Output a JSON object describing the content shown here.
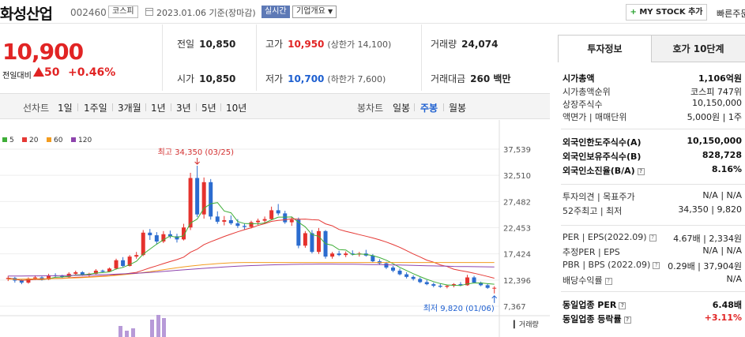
{
  "header": {
    "company": "화성산업",
    "code": "002460",
    "market": "코스피",
    "date": "2023.01.06  기준(장마감)",
    "realtime": "실시간",
    "overview": "기업개요",
    "mystock": "MY STOCK 추가",
    "quick": "빠른주문"
  },
  "price": {
    "current": "10,900",
    "change_label": "전일대비",
    "change": "50",
    "rate": "+0.46%"
  },
  "stats": {
    "prev_label": "전일",
    "prev": "10,850",
    "high_label": "고가",
    "high": "10,950",
    "high_limit": "(상한가 14,100)",
    "vol_label": "거래량",
    "vol": "24,074",
    "open_label": "시가",
    "open": "10,850",
    "low_label": "저가",
    "low": "10,700",
    "low_limit": "(하한가 7,600)",
    "amt_label": "거래대금",
    "amt": "260 백만"
  },
  "tabs": {
    "line_label": "선차트",
    "line": [
      "1일",
      "1주일",
      "3개월",
      "1년",
      "3년",
      "5년",
      "10년"
    ],
    "candle_label": "봉차트",
    "candle": [
      "일봉",
      "주봉",
      "월봉"
    ],
    "active": "주봉"
  },
  "chart_data": {
    "type": "candlestick",
    "legend": [
      {
        "name": "5",
        "color": "#3fae38"
      },
      {
        "name": "20",
        "color": "#e53935"
      },
      {
        "name": "60",
        "color": "#f39c1f"
      },
      {
        "name": "120",
        "color": "#8e44ad"
      }
    ],
    "y_ticks": [
      "37,539",
      "32,510",
      "27,482",
      "22,453",
      "17,424",
      "12,396",
      "7,367"
    ],
    "ylim": [
      7367,
      37539
    ],
    "max_label": "최고 34,350 (03/25)",
    "min_label": "최저 9,820 (01/06)",
    "volume_label": "거래량",
    "candles": [
      [
        12600,
        13200,
        12200,
        12800
      ],
      [
        12800,
        13000,
        11900,
        12300
      ],
      [
        12300,
        12500,
        11600,
        11900
      ],
      [
        11900,
        12900,
        11700,
        12700
      ],
      [
        12700,
        13300,
        12400,
        12900
      ],
      [
        12900,
        13100,
        12300,
        12500
      ],
      [
        12500,
        13600,
        12400,
        13300
      ],
      [
        13300,
        13700,
        12900,
        13200
      ],
      [
        13200,
        13400,
        12800,
        13000
      ],
      [
        13000,
        13900,
        12900,
        13600
      ],
      [
        13600,
        14200,
        13300,
        13900
      ],
      [
        13900,
        14100,
        13200,
        13400
      ],
      [
        13400,
        13800,
        13000,
        13600
      ],
      [
        13600,
        14500,
        13500,
        14200
      ],
      [
        14200,
        14400,
        13800,
        14000
      ],
      [
        14000,
        14800,
        13900,
        14600
      ],
      [
        14600,
        16500,
        14400,
        16200
      ],
      [
        16200,
        16800,
        14900,
        15100
      ],
      [
        15100,
        17200,
        15000,
        16900
      ],
      [
        16900,
        17800,
        16500,
        17200
      ],
      [
        17200,
        22000,
        17000,
        21500
      ],
      [
        21500,
        22200,
        20100,
        21000
      ],
      [
        21000,
        21600,
        19200,
        19800
      ],
      [
        19800,
        21800,
        19500,
        21200
      ],
      [
        21200,
        21900,
        20400,
        20800
      ],
      [
        20800,
        21300,
        19600,
        20200
      ],
      [
        20200,
        23200,
        20000,
        22500
      ],
      [
        22500,
        33000,
        22000,
        32000
      ],
      [
        32000,
        34350,
        24500,
        25000
      ],
      [
        25000,
        32100,
        24200,
        31200
      ],
      [
        31200,
        31800,
        24000,
        24600
      ],
      [
        24600,
        25600,
        23200,
        23600
      ],
      [
        23600,
        24700,
        22900,
        23900
      ],
      [
        23900,
        24800,
        23000,
        23300
      ],
      [
        23300,
        24100,
        22400,
        22800
      ],
      [
        22800,
        23300,
        22100,
        22600
      ],
      [
        22600,
        23800,
        22300,
        23500
      ],
      [
        23500,
        24200,
        23000,
        23800
      ],
      [
        23800,
        24600,
        23400,
        24100
      ],
      [
        24100,
        26500,
        23900,
        25800
      ],
      [
        25800,
        27000,
        24800,
        25200
      ],
      [
        25200,
        25700,
        23200,
        23500
      ],
      [
        23500,
        24600,
        22800,
        24000
      ],
      [
        24000,
        24400,
        18500,
        19000
      ],
      [
        19000,
        21800,
        18600,
        21400
      ],
      [
        21400,
        22000,
        17500,
        17800
      ],
      [
        17800,
        22400,
        17400,
        21800
      ],
      [
        21800,
        22000,
        16500,
        16900
      ],
      [
        16900,
        17800,
        16500,
        17500
      ],
      [
        17500,
        18000,
        17000,
        17200
      ],
      [
        17200,
        17900,
        16800,
        17500
      ],
      [
        17500,
        18100,
        17100,
        17300
      ],
      [
        17300,
        17800,
        16900,
        17500
      ],
      [
        17500,
        18200,
        16900,
        17100
      ],
      [
        17100,
        17400,
        15800,
        16000
      ],
      [
        16000,
        16400,
        15300,
        15600
      ],
      [
        15600,
        15900,
        14500,
        14800
      ],
      [
        14800,
        15100,
        13900,
        14200
      ],
      [
        14200,
        14600,
        13300,
        13500
      ],
      [
        13500,
        13900,
        12700,
        13000
      ],
      [
        13000,
        13300,
        12300,
        12600
      ],
      [
        12600,
        12900,
        11800,
        12000
      ],
      [
        12000,
        12400,
        11400,
        11600
      ],
      [
        11600,
        11900,
        11000,
        11300
      ],
      [
        11300,
        11700,
        10900,
        11100
      ],
      [
        11100,
        11500,
        10800,
        11300
      ],
      [
        11300,
        11800,
        11000,
        11600
      ],
      [
        11600,
        12000,
        11200,
        11400
      ],
      [
        11400,
        13400,
        11300,
        12900
      ],
      [
        12900,
        13200,
        11800,
        11900
      ],
      [
        11900,
        12100,
        11200,
        11400
      ],
      [
        11400,
        11700,
        10700,
        10900
      ],
      [
        10900,
        11200,
        9820,
        10900
      ]
    ]
  },
  "side": {
    "tab_on": "투자정보",
    "tab_off": "호가 10단계",
    "rows": [
      {
        "k": "시가총액",
        "v": "1,106억원"
      },
      {
        "k": "시가총액순위",
        "v": "코스피 747위"
      },
      {
        "k": "상장주식수",
        "v": "10,150,000"
      },
      {
        "k": "액면가 | 매매단위",
        "v": "5,000원 | 1주"
      },
      {
        "k": "외국인한도주식수(A)",
        "v": "10,150,000"
      },
      {
        "k": "외국인보유주식수(B)",
        "v": "828,728"
      },
      {
        "k": "외국인소진율(B/A)",
        "v": "8.16%"
      },
      {
        "k": "투자의견 | 목표주가",
        "v": "N/A | N/A"
      },
      {
        "k": "52주최고 | 최저",
        "v": "34,350 | 9,820"
      },
      {
        "k": "PER | EPS(2022.09)",
        "v": "4.67배 | 2,334원"
      },
      {
        "k": "추정PER | EPS",
        "v": "N/A | N/A"
      },
      {
        "k": "PBR | BPS (2022.09)",
        "v": "0.29배 | 37,904원"
      },
      {
        "k": "배당수익률",
        "v": "N/A"
      },
      {
        "k": "동일업종 PER",
        "v": "6.48배"
      },
      {
        "k": "동일업종 등락률",
        "v": "+3.11%"
      }
    ]
  }
}
